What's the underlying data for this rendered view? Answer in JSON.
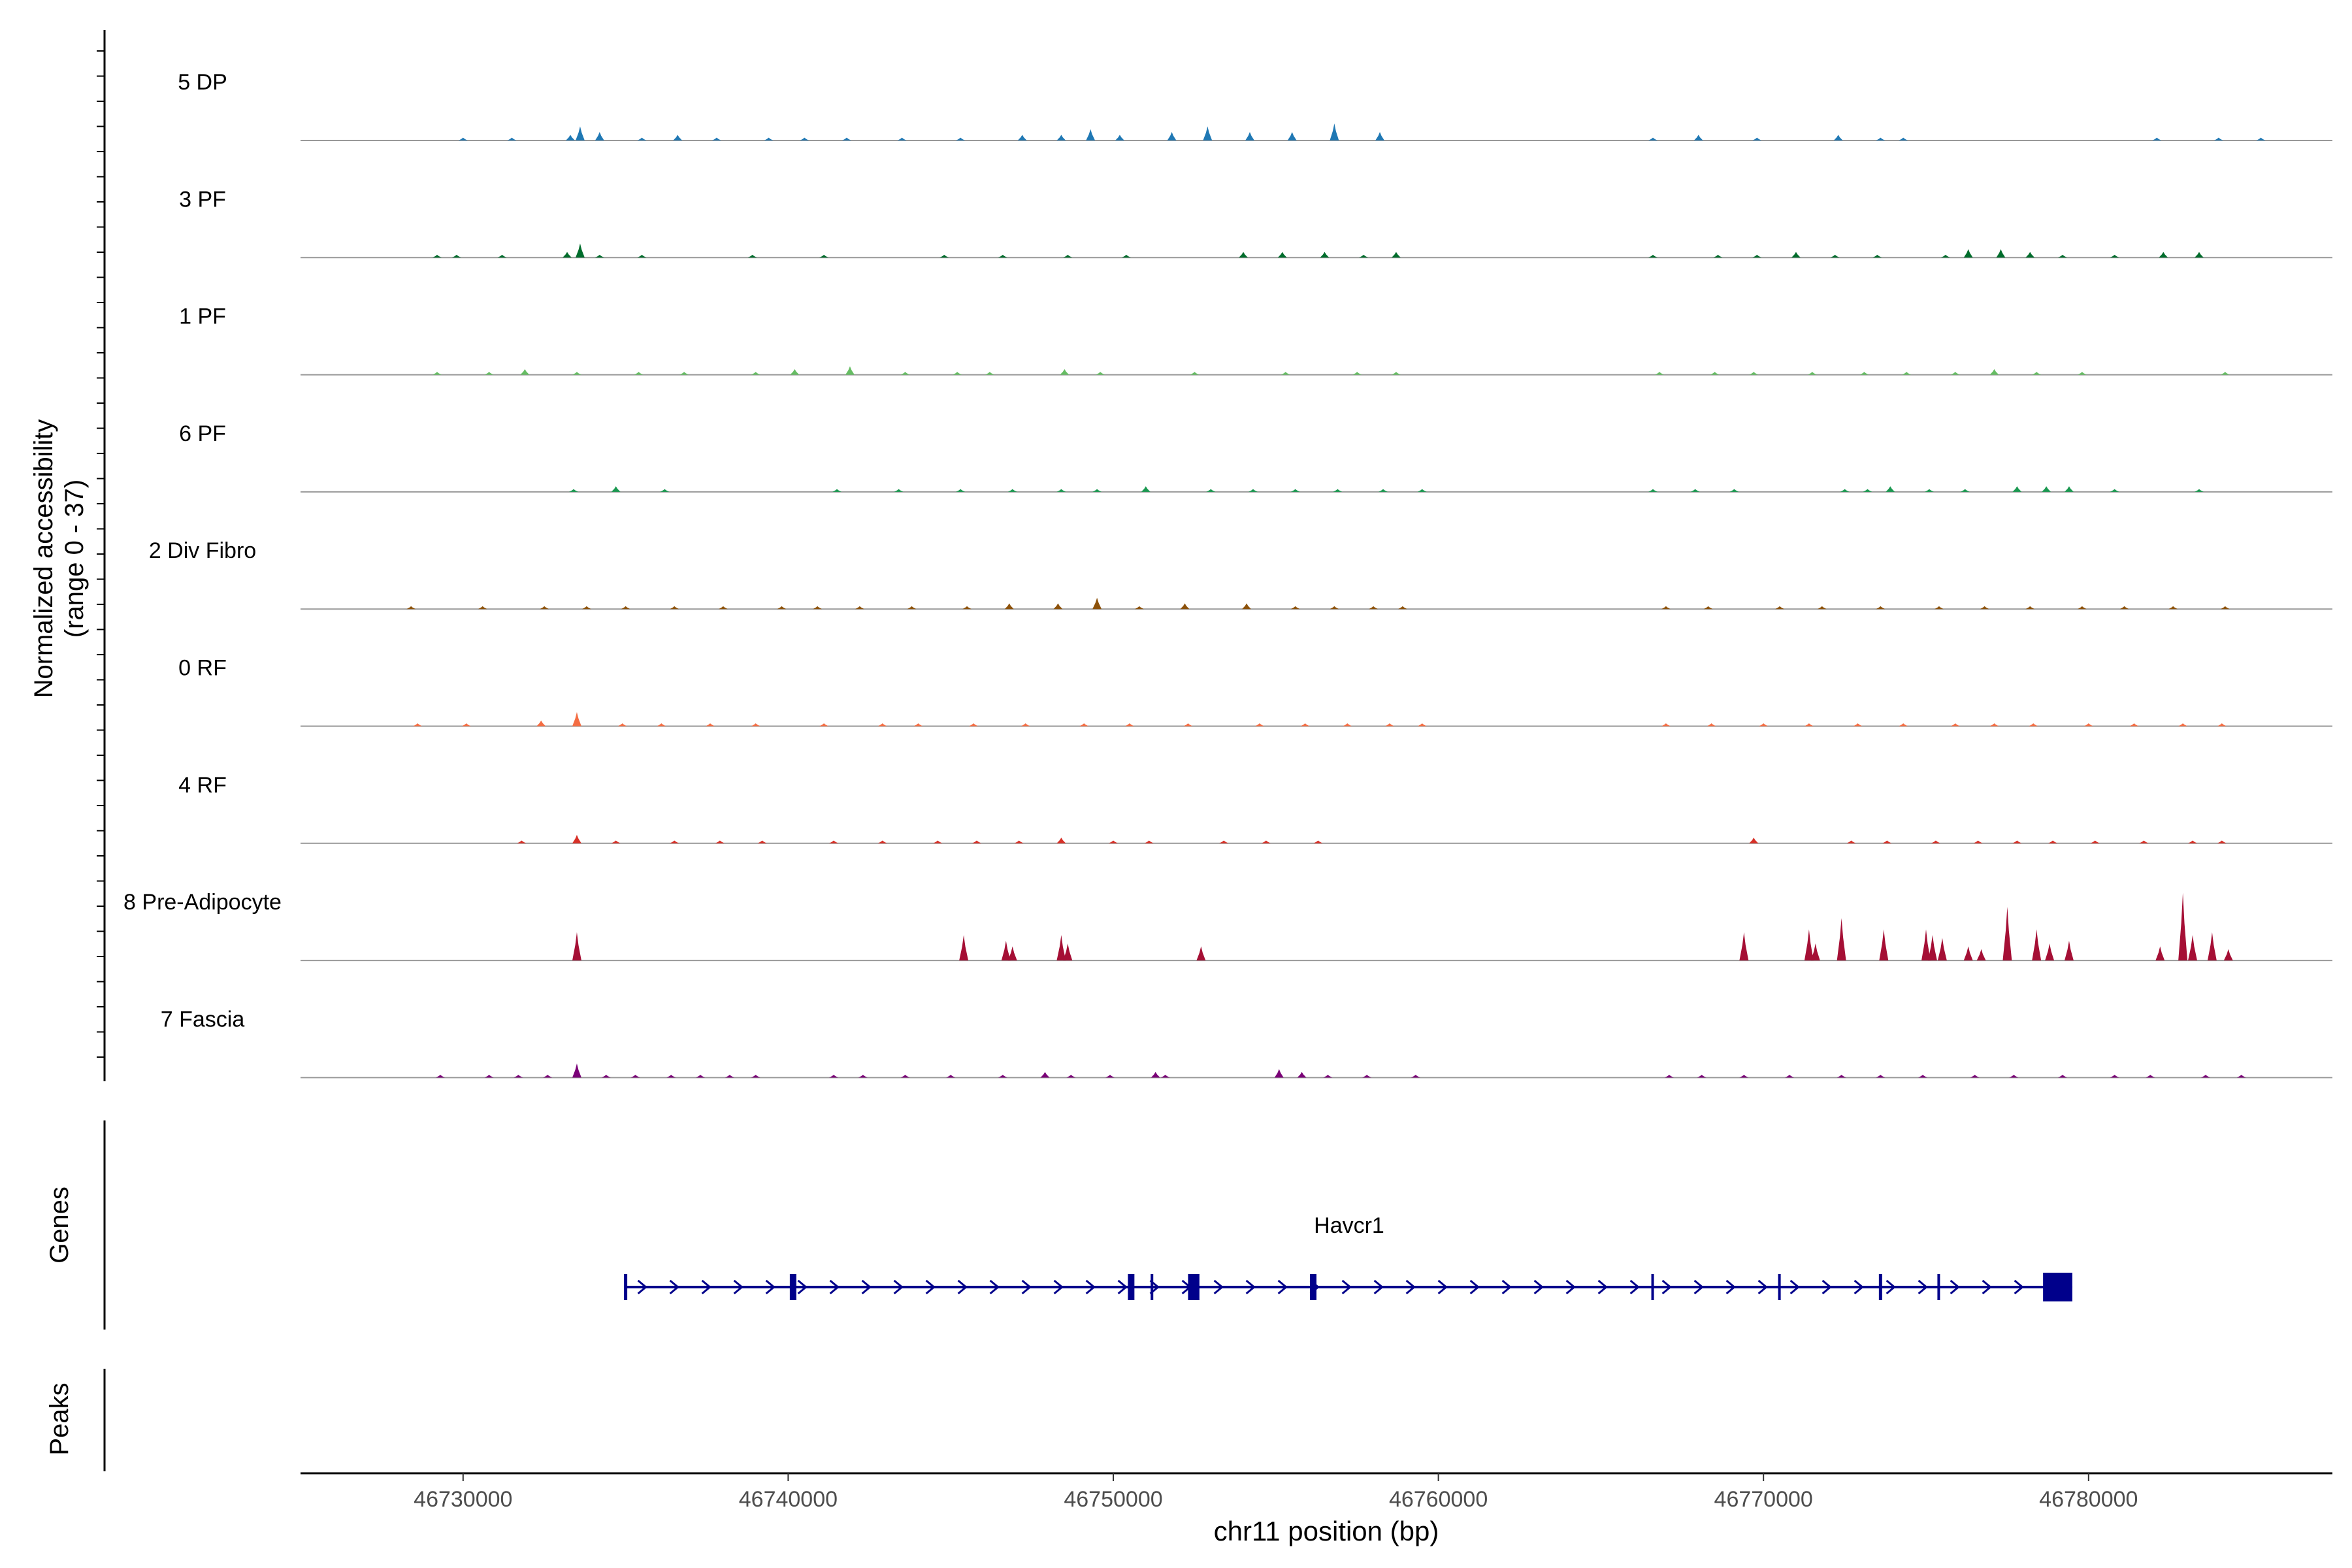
{
  "chart_data": {
    "type": "area",
    "title": "",
    "y_axis_label_line1": "Normalized accessibility",
    "y_axis_label_line2": "(range 0 - 37)",
    "y_range": [
      0,
      37
    ],
    "xlabel": "chr11 position (bp)",
    "xlim": [
      46725000,
      46787500
    ],
    "x_ticks": [
      46730000,
      46740000,
      46750000,
      46760000,
      46770000,
      46780000
    ],
    "x_tick_labels": [
      "46730000",
      "46740000",
      "46750000",
      "46760000",
      "46770000",
      "46780000"
    ],
    "genes_label": "Genes",
    "peaks_label": "Peaks",
    "tracks": [
      {
        "name": "5 DP",
        "color": "#1f78b4",
        "peaks": [
          [
            46730000,
            1
          ],
          [
            46731500,
            1
          ],
          [
            46733300,
            2
          ],
          [
            46733600,
            5
          ],
          [
            46734200,
            3
          ],
          [
            46735500,
            1
          ],
          [
            46736600,
            2
          ],
          [
            46737800,
            1
          ],
          [
            46739400,
            1
          ],
          [
            46740500,
            1
          ],
          [
            46741800,
            1
          ],
          [
            46743500,
            1
          ],
          [
            46745300,
            1
          ],
          [
            46747200,
            2
          ],
          [
            46748400,
            2
          ],
          [
            46749300,
            4
          ],
          [
            46750200,
            2
          ],
          [
            46751800,
            3
          ],
          [
            46752900,
            5
          ],
          [
            46754200,
            3
          ],
          [
            46755500,
            3
          ],
          [
            46756800,
            6
          ],
          [
            46758200,
            3
          ],
          [
            46766600,
            1
          ],
          [
            46768000,
            2
          ],
          [
            46769800,
            1
          ],
          [
            46772300,
            2
          ],
          [
            46773600,
            1
          ],
          [
            46774300,
            1
          ],
          [
            46785300,
            1
          ],
          [
            46782100,
            1
          ],
          [
            46784000,
            1
          ]
        ]
      },
      {
        "name": "3 PF",
        "color": "#006d2c",
        "peaks": [
          [
            46729200,
            1
          ],
          [
            46729800,
            1
          ],
          [
            46731200,
            1
          ],
          [
            46733200,
            2
          ],
          [
            46733600,
            5
          ],
          [
            46734200,
            1
          ],
          [
            46735500,
            1
          ],
          [
            46738900,
            1
          ],
          [
            46741100,
            1
          ],
          [
            46744800,
            1
          ],
          [
            46746600,
            1
          ],
          [
            46748600,
            1
          ],
          [
            46750400,
            1
          ],
          [
            46754000,
            2
          ],
          [
            46755200,
            2
          ],
          [
            46756500,
            2
          ],
          [
            46757700,
            1
          ],
          [
            46758700,
            2
          ],
          [
            46766600,
            1
          ],
          [
            46768600,
            1
          ],
          [
            46769800,
            1
          ],
          [
            46771000,
            2
          ],
          [
            46772200,
            1
          ],
          [
            46773500,
            1
          ],
          [
            46775600,
            1
          ],
          [
            46776300,
            3
          ],
          [
            46777300,
            3
          ],
          [
            46778200,
            2
          ],
          [
            46779200,
            1
          ],
          [
            46780800,
            1
          ],
          [
            46782300,
            2
          ],
          [
            46783400,
            2
          ]
        ]
      },
      {
        "name": "1 PF",
        "color": "#66bd63",
        "peaks": [
          [
            46729200,
            1
          ],
          [
            46730800,
            1
          ],
          [
            46731900,
            2
          ],
          [
            46733500,
            1
          ],
          [
            46735400,
            1
          ],
          [
            46736800,
            1
          ],
          [
            46739000,
            1
          ],
          [
            46740200,
            2
          ],
          [
            46741900,
            3
          ],
          [
            46743600,
            1
          ],
          [
            46745200,
            1
          ],
          [
            46746200,
            1
          ],
          [
            46748500,
            2
          ],
          [
            46749600,
            1
          ],
          [
            46752500,
            1
          ],
          [
            46755300,
            1
          ],
          [
            46757500,
            1
          ],
          [
            46758700,
            1
          ],
          [
            46766800,
            1
          ],
          [
            46768500,
            1
          ],
          [
            46769700,
            1
          ],
          [
            46771500,
            1
          ],
          [
            46773100,
            1
          ],
          [
            46774400,
            1
          ],
          [
            46775900,
            1
          ],
          [
            46777100,
            2
          ],
          [
            46778400,
            1
          ],
          [
            46779800,
            1
          ],
          [
            46784200,
            1
          ]
        ]
      },
      {
        "name": "6 PF",
        "color": "#1a9850",
        "peaks": [
          [
            46733400,
            1
          ],
          [
            46734700,
            2
          ],
          [
            46736200,
            1
          ],
          [
            46741500,
            1
          ],
          [
            46743400,
            1
          ],
          [
            46745300,
            1
          ],
          [
            46746900,
            1
          ],
          [
            46748400,
            1
          ],
          [
            46749500,
            1
          ],
          [
            46751000,
            2
          ],
          [
            46753000,
            1
          ],
          [
            46754300,
            1
          ],
          [
            46755600,
            1
          ],
          [
            46756900,
            1
          ],
          [
            46758300,
            1
          ],
          [
            46759500,
            1
          ],
          [
            46766600,
            1
          ],
          [
            46767900,
            1
          ],
          [
            46769100,
            1
          ],
          [
            46772500,
            1
          ],
          [
            46773200,
            1
          ],
          [
            46773900,
            2
          ],
          [
            46775100,
            1
          ],
          [
            46776200,
            1
          ],
          [
            46777800,
            2
          ],
          [
            46778700,
            2
          ],
          [
            46779400,
            2
          ],
          [
            46780800,
            1
          ],
          [
            46783400,
            1
          ]
        ]
      },
      {
        "name": "2 Div Fibro",
        "color": "#8c510a",
        "peaks": [
          [
            46728400,
            1
          ],
          [
            46730600,
            1
          ],
          [
            46732500,
            1
          ],
          [
            46733800,
            1
          ],
          [
            46735000,
            1
          ],
          [
            46736500,
            1
          ],
          [
            46738000,
            1
          ],
          [
            46739800,
            1
          ],
          [
            46740900,
            1
          ],
          [
            46742200,
            1
          ],
          [
            46743800,
            1
          ],
          [
            46745500,
            1
          ],
          [
            46746800,
            2
          ],
          [
            46748300,
            2
          ],
          [
            46749500,
            4
          ],
          [
            46750800,
            1
          ],
          [
            46752200,
            2
          ],
          [
            46754100,
            2
          ],
          [
            46755600,
            1
          ],
          [
            46756800,
            1
          ],
          [
            46758000,
            1
          ],
          [
            46758900,
            1
          ],
          [
            46767000,
            1
          ],
          [
            46768300,
            1
          ],
          [
            46770500,
            1
          ],
          [
            46771800,
            1
          ],
          [
            46773600,
            1
          ],
          [
            46775400,
            1
          ],
          [
            46776800,
            1
          ],
          [
            46778200,
            1
          ],
          [
            46779800,
            1
          ],
          [
            46781100,
            1
          ],
          [
            46782600,
            1
          ],
          [
            46784200,
            1
          ]
        ]
      },
      {
        "name": "0 RF",
        "color": "#f46d43",
        "peaks": [
          [
            46728600,
            1
          ],
          [
            46730100,
            1
          ],
          [
            46732400,
            2
          ],
          [
            46733500,
            5
          ],
          [
            46734900,
            1
          ],
          [
            46736100,
            1
          ],
          [
            46737600,
            1
          ],
          [
            46739000,
            1
          ],
          [
            46741100,
            1
          ],
          [
            46742900,
            1
          ],
          [
            46744000,
            1
          ],
          [
            46745700,
            1
          ],
          [
            46747300,
            1
          ],
          [
            46749100,
            1
          ],
          [
            46750500,
            1
          ],
          [
            46752300,
            1
          ],
          [
            46754500,
            1
          ],
          [
            46755900,
            1
          ],
          [
            46757200,
            1
          ],
          [
            46758500,
            1
          ],
          [
            46759500,
            1
          ],
          [
            46767000,
            1
          ],
          [
            46768400,
            1
          ],
          [
            46770000,
            1
          ],
          [
            46771400,
            1
          ],
          [
            46772900,
            1
          ],
          [
            46774300,
            1
          ],
          [
            46775900,
            1
          ],
          [
            46777100,
            1
          ],
          [
            46778300,
            1
          ],
          [
            46780000,
            1
          ],
          [
            46781400,
            1
          ],
          [
            46782900,
            1
          ],
          [
            46784100,
            1
          ]
        ]
      },
      {
        "name": "4 RF",
        "color": "#d73027",
        "peaks": [
          [
            46731800,
            1
          ],
          [
            46733500,
            3
          ],
          [
            46734700,
            1
          ],
          [
            46736500,
            1
          ],
          [
            46737900,
            1
          ],
          [
            46739200,
            1
          ],
          [
            46741400,
            1
          ],
          [
            46742900,
            1
          ],
          [
            46744600,
            1
          ],
          [
            46745800,
            1
          ],
          [
            46747100,
            1
          ],
          [
            46748400,
            2
          ],
          [
            46750000,
            1
          ],
          [
            46751100,
            1
          ],
          [
            46753400,
            1
          ],
          [
            46754700,
            1
          ],
          [
            46756300,
            1
          ],
          [
            46769700,
            2
          ],
          [
            46772700,
            1
          ],
          [
            46773800,
            1
          ],
          [
            46775300,
            1
          ],
          [
            46776600,
            1
          ],
          [
            46777800,
            1
          ],
          [
            46778900,
            1
          ],
          [
            46780200,
            1
          ],
          [
            46781700,
            1
          ],
          [
            46783200,
            1
          ],
          [
            46784100,
            1
          ]
        ]
      },
      {
        "name": "8 Pre-Adipocyte",
        "color": "#a50f35",
        "peaks": [
          [
            46733500,
            10
          ],
          [
            46745400,
            9
          ],
          [
            46746700,
            7
          ],
          [
            46746900,
            5
          ],
          [
            46748400,
            9
          ],
          [
            46748600,
            6
          ],
          [
            46752700,
            5
          ],
          [
            46769400,
            10
          ],
          [
            46771400,
            11
          ],
          [
            46771600,
            6
          ],
          [
            46772400,
            15
          ],
          [
            46773700,
            11
          ],
          [
            46775000,
            11
          ],
          [
            46775200,
            9
          ],
          [
            46775500,
            8
          ],
          [
            46776300,
            5
          ],
          [
            46776700,
            4
          ],
          [
            46777500,
            19
          ],
          [
            46778400,
            11
          ],
          [
            46778800,
            6
          ],
          [
            46779400,
            7
          ],
          [
            46782200,
            5
          ],
          [
            46782900,
            24
          ],
          [
            46783200,
            9
          ],
          [
            46783800,
            10
          ],
          [
            46784300,
            4
          ]
        ]
      },
      {
        "name": "7 Fascia",
        "color": "#7a0177",
        "peaks": [
          [
            46729300,
            1
          ],
          [
            46730800,
            1
          ],
          [
            46731700,
            1
          ],
          [
            46732600,
            1
          ],
          [
            46733500,
            5
          ],
          [
            46734400,
            1
          ],
          [
            46735300,
            1
          ],
          [
            46736400,
            1
          ],
          [
            46737300,
            1
          ],
          [
            46738200,
            1
          ],
          [
            46739000,
            1
          ],
          [
            46741400,
            1
          ],
          [
            46742300,
            1
          ],
          [
            46743600,
            1
          ],
          [
            46745000,
            1
          ],
          [
            46746600,
            1
          ],
          [
            46747900,
            2
          ],
          [
            46748700,
            1
          ],
          [
            46749900,
            1
          ],
          [
            46751300,
            2
          ],
          [
            46751600,
            1
          ],
          [
            46755100,
            3
          ],
          [
            46755800,
            2
          ],
          [
            46756600,
            1
          ],
          [
            46757800,
            1
          ],
          [
            46759300,
            1
          ],
          [
            46767100,
            1
          ],
          [
            46768100,
            1
          ],
          [
            46769400,
            1
          ],
          [
            46770800,
            1
          ],
          [
            46772400,
            1
          ],
          [
            46773600,
            1
          ],
          [
            46774900,
            1
          ],
          [
            46776500,
            1
          ],
          [
            46777700,
            1
          ],
          [
            46779200,
            1
          ],
          [
            46780800,
            1
          ],
          [
            46781900,
            1
          ],
          [
            46783600,
            1
          ],
          [
            46784700,
            1
          ]
        ]
      }
    ],
    "gene": {
      "name": "Havcr1",
      "color": "#00008b",
      "start": 46735000,
      "end": 46779500,
      "exons": [
        [
          46734950,
          46735050
        ],
        [
          46740050,
          46740250
        ],
        [
          46750450,
          46750650
        ],
        [
          46751150,
          46751200
        ],
        [
          46752300,
          46752650
        ],
        [
          46756050,
          46756250
        ],
        [
          46766550,
          46766600
        ],
        [
          46770450,
          46770500
        ],
        [
          46773550,
          46773650
        ],
        [
          46775350,
          46775400
        ],
        [
          46778600,
          46779500
        ]
      ]
    }
  }
}
